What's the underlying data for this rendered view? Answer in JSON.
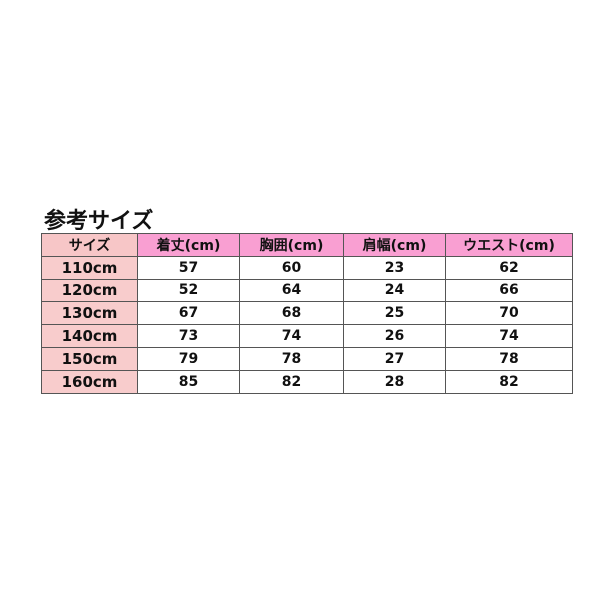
{
  "title": "参考サイズ",
  "colors": {
    "header": "#f99fd2",
    "first_column": "#f8cccc",
    "header_first": "#f7c6c7"
  },
  "headers": [
    "サイズ",
    "着丈(cm)",
    "胸囲(cm)",
    "肩幅(cm)",
    "ウエスト(cm)"
  ],
  "rows": [
    [
      "110cm",
      "57",
      "60",
      "23",
      "62"
    ],
    [
      "120cm",
      "52",
      "64",
      "24",
      "66"
    ],
    [
      "130cm",
      "67",
      "68",
      "25",
      "70"
    ],
    [
      "140cm",
      "73",
      "74",
      "26",
      "74"
    ],
    [
      "150cm",
      "79",
      "78",
      "27",
      "78"
    ],
    [
      "160cm",
      "85",
      "82",
      "28",
      "82"
    ]
  ]
}
